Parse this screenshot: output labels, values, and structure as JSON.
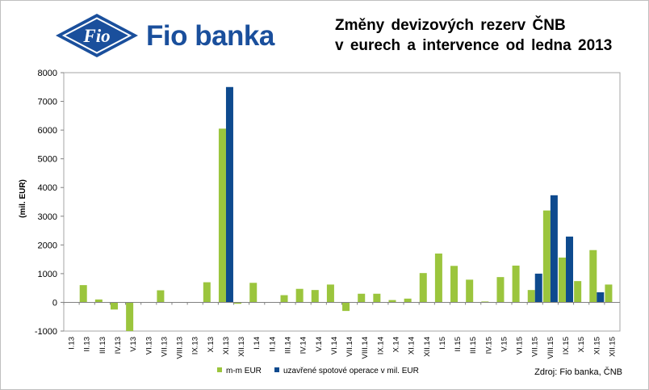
{
  "header": {
    "logo_text": "Fio banka",
    "logo_mark_text": "Fio",
    "title_line1": "Změny  devizových  rezerv  ČNB",
    "title_line2": "v eurech  a  intervence  od ledna  2013"
  },
  "source": "Zdroj: Fio  banka,  ČNB",
  "colors": {
    "series1": "#9bc53d",
    "series2": "#0e4a8e",
    "logo_blue": "#1a4f9c",
    "plot_border": "#a6a6a6",
    "gridline": "#d9d9d9"
  },
  "chart_data": {
    "type": "bar",
    "title": "Změny  devizových  rezerv  ČNB v eurech  a  intervence  od ledna  2013",
    "ylabel": "(mil. EUR)",
    "xlabel": "",
    "ylim": [
      -1000,
      8000
    ],
    "yticks": [
      -1000,
      0,
      1000,
      2000,
      3000,
      4000,
      5000,
      6000,
      7000,
      8000
    ],
    "grid": false,
    "legend": "bottom",
    "categories": [
      "I.13",
      "II.13",
      "III.13",
      "IV.13",
      "V.13",
      "VI.13",
      "VII.13",
      "VIII.13",
      "IX.13",
      "X.13",
      "XI.13",
      "XII.13",
      "I.14",
      "II.14",
      "III.14",
      "IV.14",
      "V.14",
      "VI.14",
      "VII.14",
      "VIII.14",
      "IX.14",
      "X.14",
      "XI.14",
      "XII.14",
      "I.15",
      "II.15",
      "III.15",
      "IV.15",
      "V.15",
      "VI.15",
      "VII.15",
      "VIII.15",
      "IX.15",
      "X.15",
      "XI.15",
      "XII.15"
    ],
    "series": [
      {
        "name": "m-m EUR",
        "values": [
          0,
          600,
          100,
          -250,
          -1000,
          0,
          420,
          0,
          0,
          700,
          6050,
          -50,
          680,
          0,
          250,
          470,
          430,
          620,
          -300,
          300,
          300,
          80,
          130,
          1020,
          1700,
          1270,
          790,
          30,
          880,
          1280,
          430,
          3200,
          1560,
          740,
          1820,
          620
        ]
      },
      {
        "name": "uzavřené spotové operace v mil. EUR",
        "values": [
          0,
          0,
          0,
          0,
          0,
          0,
          0,
          0,
          0,
          0,
          7500,
          0,
          0,
          0,
          0,
          0,
          0,
          0,
          0,
          0,
          0,
          0,
          0,
          0,
          0,
          0,
          0,
          0,
          0,
          0,
          1000,
          3730,
          2290,
          0,
          350,
          0
        ]
      }
    ]
  }
}
